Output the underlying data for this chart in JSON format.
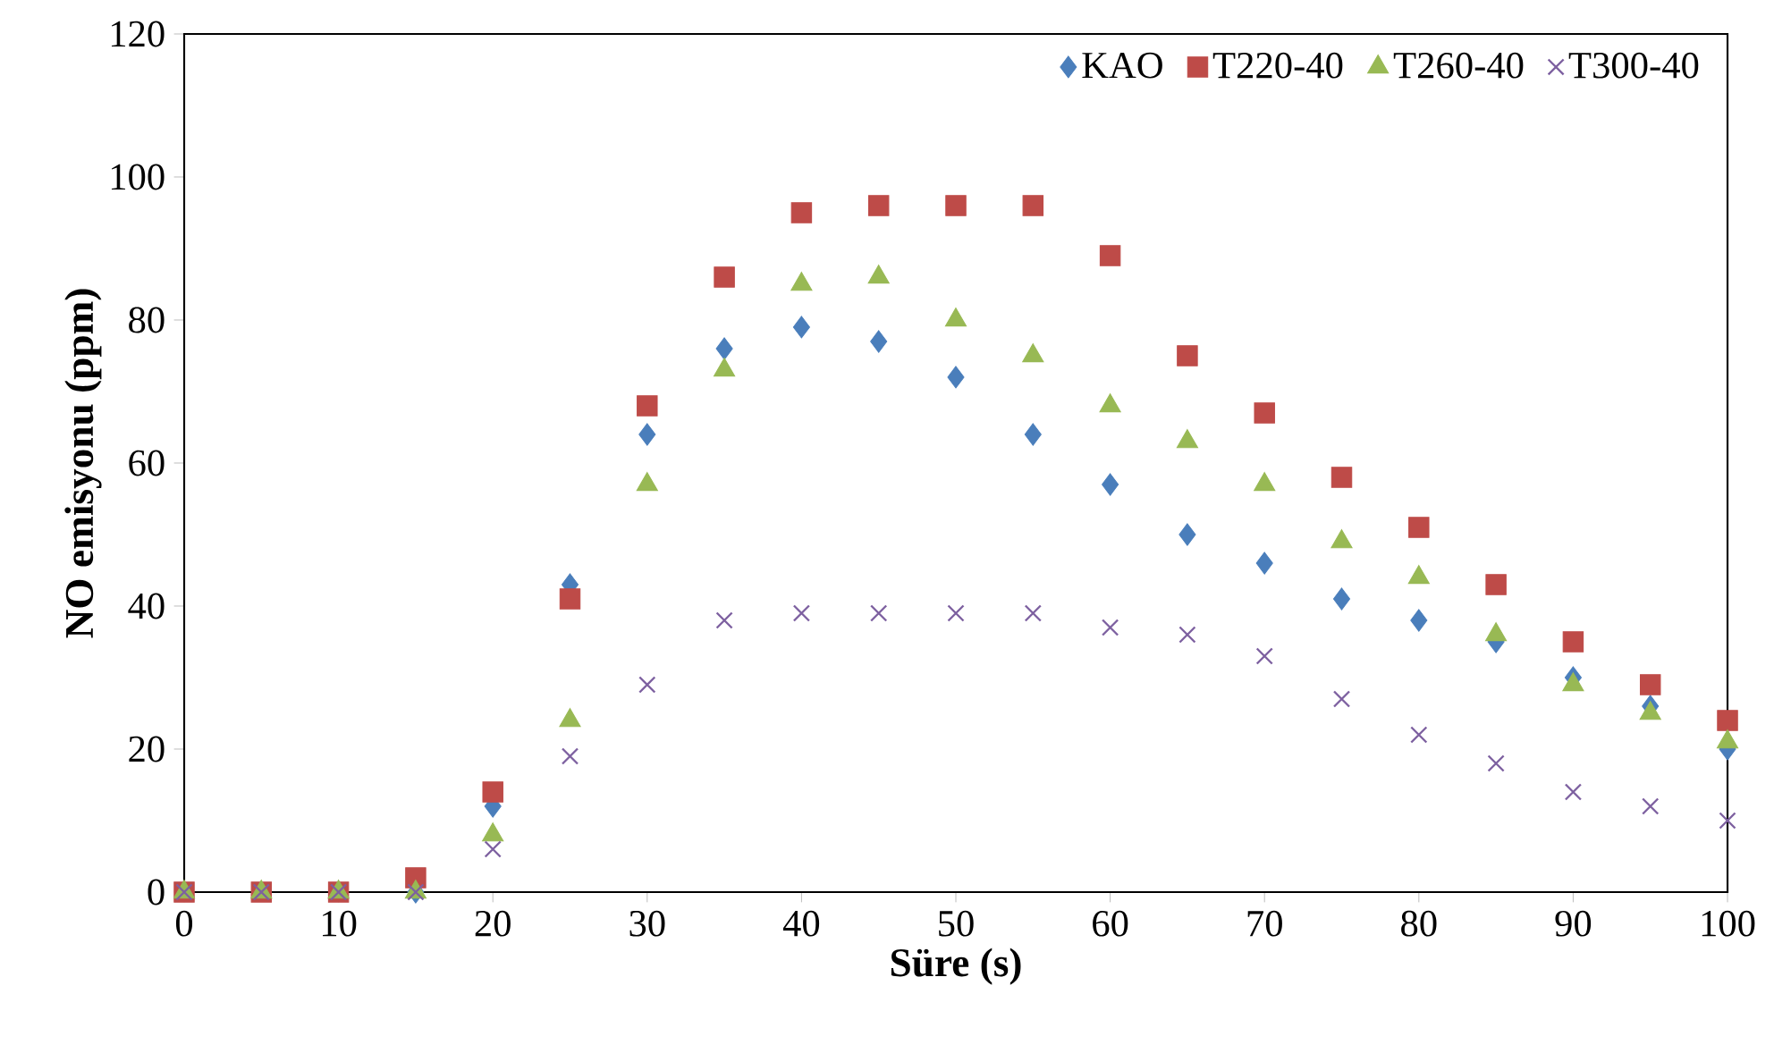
{
  "chart_data": {
    "type": "scatter",
    "xlabel": "Süre (s)",
    "ylabel": "NO emisyonu (ppm)",
    "x": [
      0,
      5,
      10,
      15,
      20,
      25,
      30,
      35,
      40,
      45,
      50,
      55,
      60,
      65,
      70,
      75,
      80,
      85,
      90,
      95,
      100
    ],
    "xlim": [
      0,
      100
    ],
    "xticks": [
      0,
      10,
      20,
      30,
      40,
      50,
      60,
      70,
      80,
      90,
      100
    ],
    "ylim": [
      0,
      120
    ],
    "yticks": [
      0,
      20,
      40,
      60,
      80,
      100,
      120
    ],
    "grid": false,
    "legend": "top right",
    "series": [
      {
        "name": "KAO",
        "color": "#4a7ebb",
        "marker": "diamond",
        "values": [
          null,
          null,
          null,
          0,
          12,
          43,
          64,
          76,
          79,
          77,
          72,
          64,
          57,
          50,
          46,
          41,
          38,
          35,
          30,
          26,
          20
        ]
      },
      {
        "name": "T220-40",
        "color": "#be4b48",
        "marker": "square",
        "values": [
          0,
          0,
          0,
          2,
          14,
          41,
          68,
          86,
          95,
          96,
          96,
          96,
          89,
          75,
          67,
          58,
          51,
          43,
          35,
          29,
          24
        ]
      },
      {
        "name": "T260-40",
        "color": "#98b954",
        "marker": "triangle",
        "values": [
          0,
          0,
          0,
          0,
          8,
          24,
          57,
          73,
          85,
          86,
          80,
          75,
          68,
          63,
          57,
          49,
          44,
          36,
          29,
          25,
          21
        ]
      },
      {
        "name": "T300-40",
        "color": "#7d60a0",
        "marker": "cross",
        "values": [
          0,
          0,
          0,
          0,
          6,
          19,
          29,
          38,
          39,
          39,
          39,
          39,
          37,
          36,
          33,
          27,
          22,
          18,
          14,
          12,
          10
        ]
      }
    ]
  }
}
